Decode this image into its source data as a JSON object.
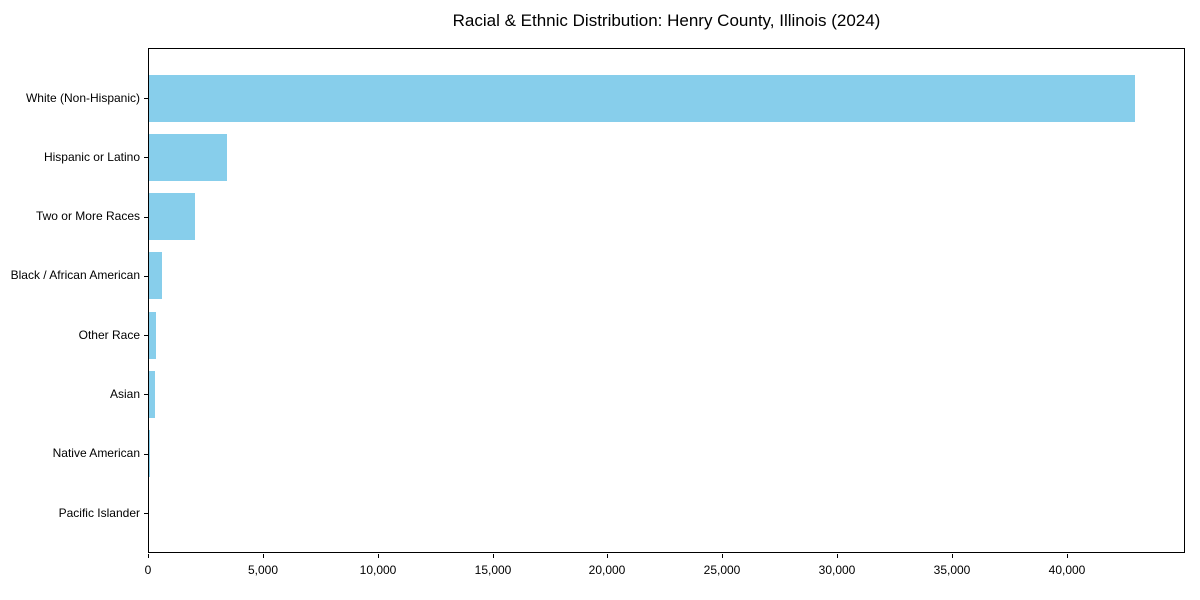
{
  "title": "Racial & Ethnic Distribution: Henry County, Illinois (2024)",
  "colors": {
    "bar": "#87CEEB",
    "axis": "#000000",
    "background": "#FFFFFF"
  },
  "chart_data": {
    "type": "bar",
    "orientation": "horizontal",
    "title": "Racial & Ethnic Distribution: Henry County, Illinois (2024)",
    "categories": [
      "White (Non-Hispanic)",
      "Hispanic or Latino",
      "Two or More Races",
      "Black / African American",
      "Other Race",
      "Asian",
      "Native American",
      "Pacific Islander"
    ],
    "values": [
      43000,
      3400,
      2000,
      550,
      320,
      260,
      40,
      10
    ],
    "xlabel": "",
    "ylabel": "",
    "xlim": [
      0,
      45150
    ],
    "xticks": [
      0,
      5000,
      10000,
      15000,
      20000,
      25000,
      30000,
      35000,
      40000
    ],
    "xtick_labels": [
      "0",
      "5,000",
      "10,000",
      "15,000",
      "20,000",
      "25,000",
      "30,000",
      "35,000",
      "40,000"
    ],
    "grid": false,
    "legend": null,
    "bar_color": "#87CEEB"
  }
}
